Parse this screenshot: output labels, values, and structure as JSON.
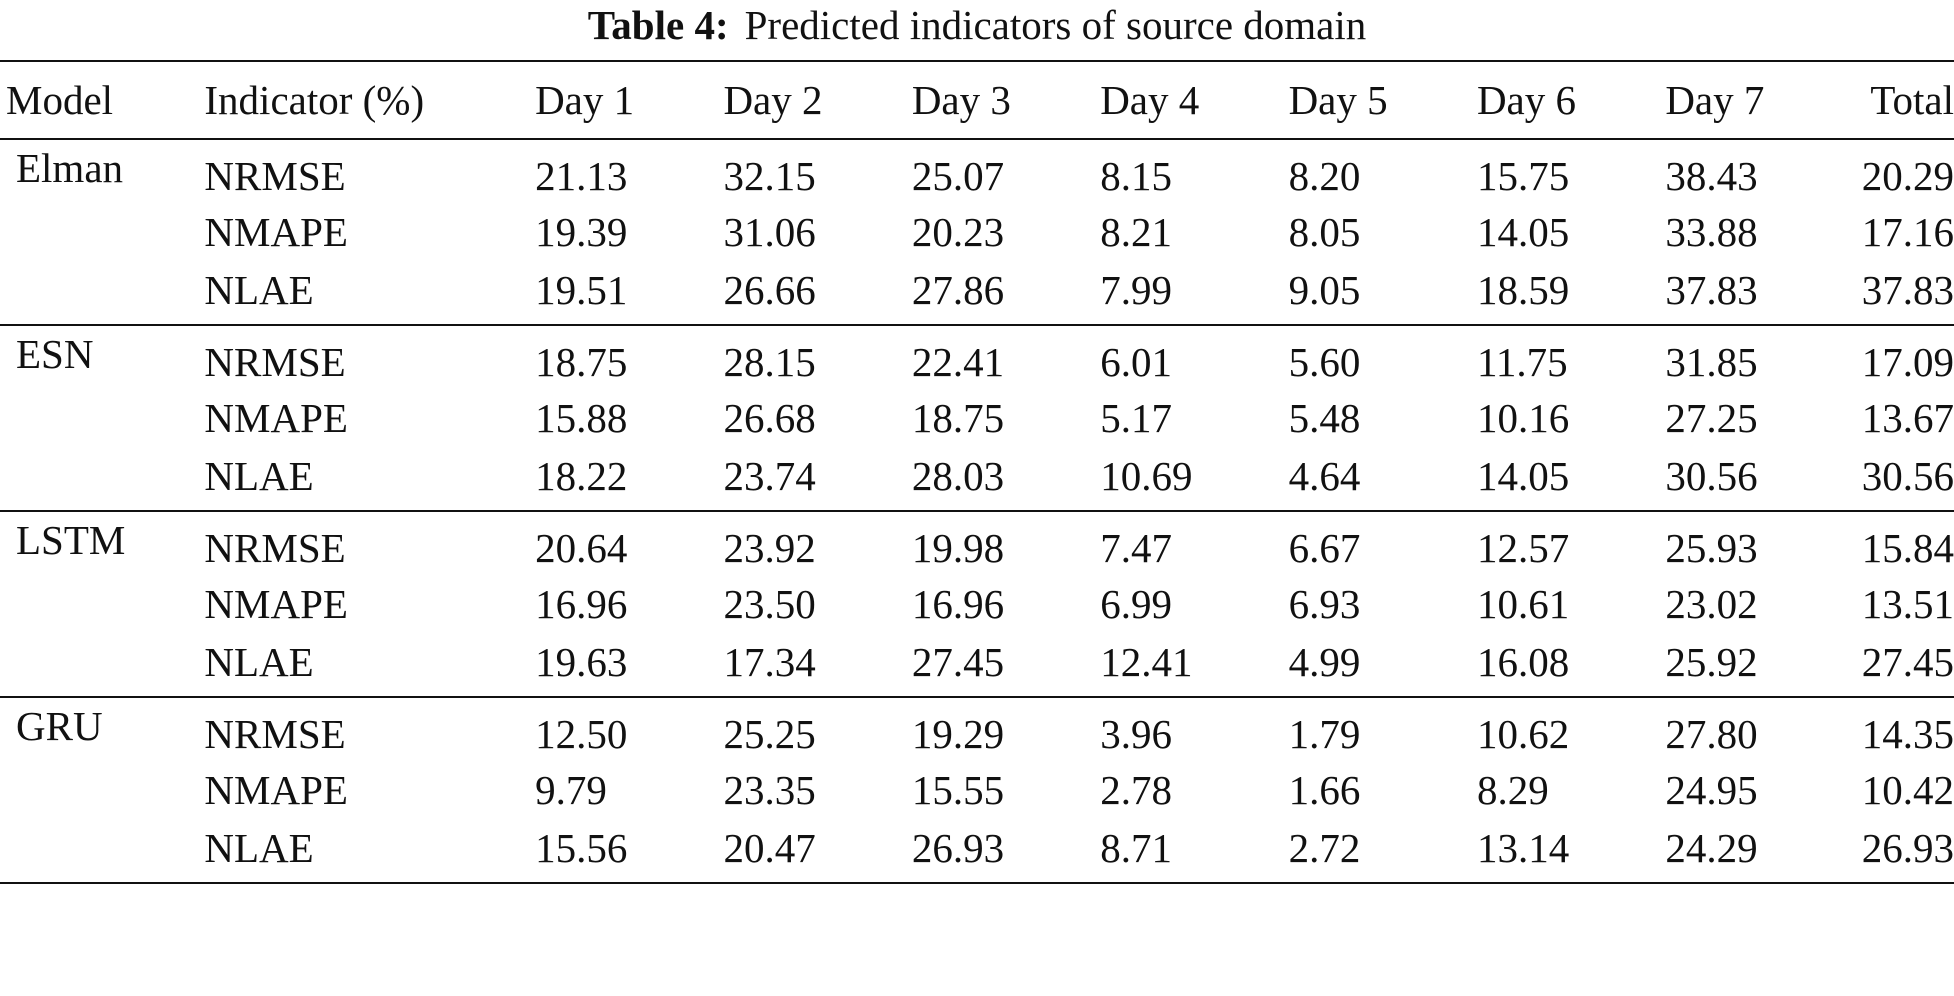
{
  "caption": {
    "label": "Table 4:",
    "text": "Predicted indicators of source domain"
  },
  "table": {
    "headers": [
      "Model",
      "Indicator (%)",
      "Day 1",
      "Day 2",
      "Day 3",
      "Day 4",
      "Day 5",
      "Day 6",
      "Day 7",
      "Total"
    ],
    "groups": [
      {
        "model": "Elman",
        "rows": [
          {
            "indicator": "NRMSE",
            "values": [
              "21.13",
              "32.15",
              "25.07",
              "8.15",
              "8.20",
              "15.75",
              "38.43",
              "20.29"
            ]
          },
          {
            "indicator": "NMAPE",
            "values": [
              "19.39",
              "31.06",
              "20.23",
              "8.21",
              "8.05",
              "14.05",
              "33.88",
              "17.16"
            ]
          },
          {
            "indicator": "NLAE",
            "values": [
              "19.51",
              "26.66",
              "27.86",
              "7.99",
              "9.05",
              "18.59",
              "37.83",
              "37.83"
            ]
          }
        ]
      },
      {
        "model": "ESN",
        "rows": [
          {
            "indicator": "NRMSE",
            "values": [
              "18.75",
              "28.15",
              "22.41",
              "6.01",
              "5.60",
              "11.75",
              "31.85",
              "17.09"
            ]
          },
          {
            "indicator": "NMAPE",
            "values": [
              "15.88",
              "26.68",
              "18.75",
              "5.17",
              "5.48",
              "10.16",
              "27.25",
              "13.67"
            ]
          },
          {
            "indicator": "NLAE",
            "values": [
              "18.22",
              "23.74",
              "28.03",
              "10.69",
              "4.64",
              "14.05",
              "30.56",
              "30.56"
            ]
          }
        ]
      },
      {
        "model": "LSTM",
        "rows": [
          {
            "indicator": "NRMSE",
            "values": [
              "20.64",
              "23.92",
              "19.98",
              "7.47",
              "6.67",
              "12.57",
              "25.93",
              "15.84"
            ]
          },
          {
            "indicator": "NMAPE",
            "values": [
              "16.96",
              "23.50",
              "16.96",
              "6.99",
              "6.93",
              "10.61",
              "23.02",
              "13.51"
            ]
          },
          {
            "indicator": "NLAE",
            "values": [
              "19.63",
              "17.34",
              "27.45",
              "12.41",
              "4.99",
              "16.08",
              "25.92",
              "27.45"
            ]
          }
        ]
      },
      {
        "model": "GRU",
        "rows": [
          {
            "indicator": "NRMSE",
            "values": [
              "12.50",
              "25.25",
              "19.29",
              "3.96",
              "1.79",
              "10.62",
              "27.80",
              "14.35"
            ]
          },
          {
            "indicator": "NMAPE",
            "values": [
              "9.79",
              "23.35",
              "15.55",
              "2.78",
              "1.66",
              "8.29",
              "24.95",
              "10.42"
            ]
          },
          {
            "indicator": "NLAE",
            "values": [
              "15.56",
              "20.47",
              "26.93",
              "8.71",
              "2.72",
              "13.14",
              "24.29",
              "26.93"
            ]
          }
        ]
      }
    ]
  }
}
